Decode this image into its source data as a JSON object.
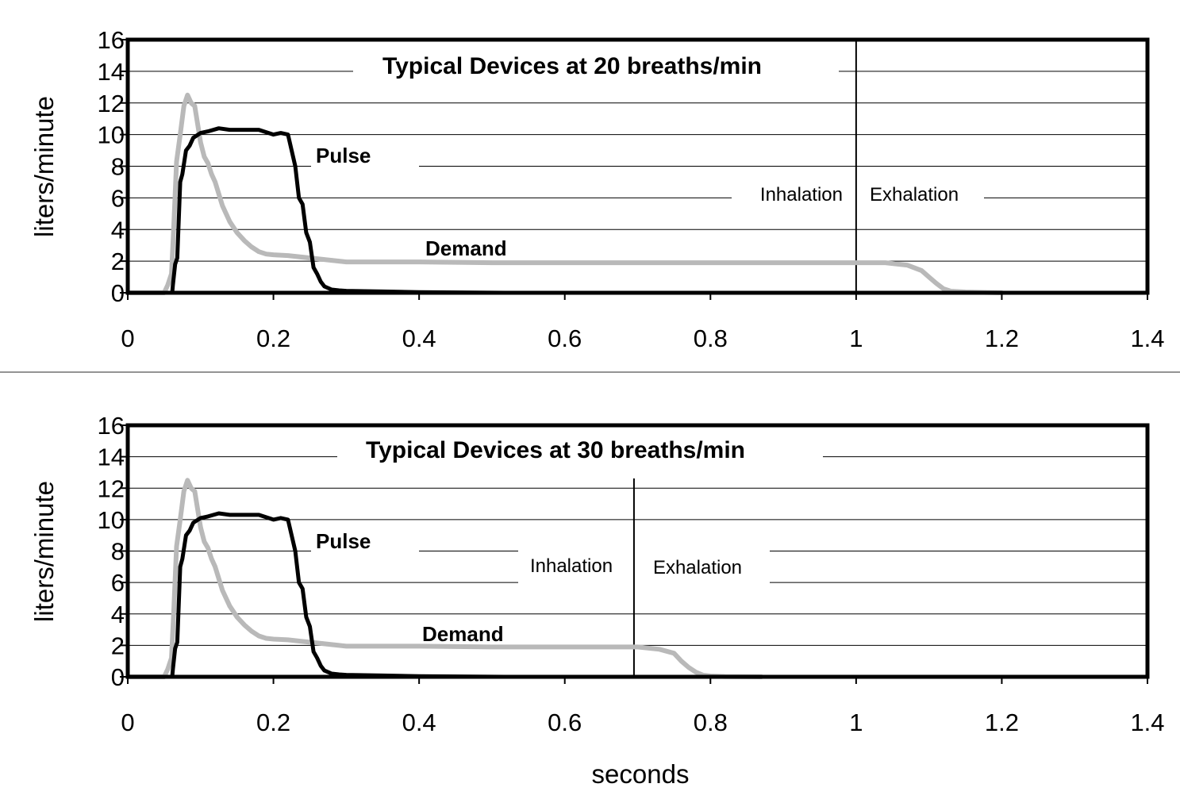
{
  "chart_data": [
    {
      "type": "line",
      "title": "Typical Devices at 20 breaths/min",
      "ylabel": "liters/minute",
      "xlabel": "",
      "xlim": [
        0,
        1.4
      ],
      "ylim": [
        0,
        16
      ],
      "xticks": [
        "0",
        "0.2",
        "0.4",
        "0.6",
        "0.8",
        "1",
        "1.2",
        "1.4"
      ],
      "yticks": [
        "0",
        "2",
        "4",
        "6",
        "8",
        "10",
        "12",
        "14",
        "16"
      ],
      "grid": true,
      "boundary_x": 1.0,
      "annotations": {
        "inhalation": "Inhalation",
        "exhalation": "Exhalation"
      },
      "series": [
        {
          "name": "Pulse",
          "color": "#000000",
          "x": [
            0,
            0.061,
            0.062,
            0.065,
            0.068,
            0.072,
            0.075,
            0.08,
            0.085,
            0.09,
            0.1,
            0.11,
            0.125,
            0.14,
            0.16,
            0.18,
            0.2,
            0.21,
            0.22,
            0.225,
            0.23,
            0.235,
            0.24,
            0.245,
            0.25,
            0.255,
            0.26,
            0.265,
            0.27,
            0.28,
            0.29,
            0.3,
            0.35,
            0.4,
            0.52
          ],
          "values": [
            0,
            0,
            0.5,
            1.8,
            2.2,
            7,
            7.5,
            9,
            9.3,
            9.8,
            10.1,
            10.2,
            10.4,
            10.3,
            10.3,
            10.3,
            10,
            10.1,
            10,
            9,
            8,
            6,
            5.6,
            3.8,
            3.2,
            1.6,
            1.2,
            0.7,
            0.4,
            0.2,
            0.15,
            0.12,
            0.08,
            0.04,
            0
          ]
        },
        {
          "name": "Demand",
          "color": "#b9b9b9",
          "x": [
            0,
            0.05,
            0.055,
            0.06,
            0.063,
            0.067,
            0.072,
            0.077,
            0.082,
            0.087,
            0.092,
            0.1,
            0.105,
            0.11,
            0.115,
            0.12,
            0.13,
            0.14,
            0.15,
            0.16,
            0.17,
            0.18,
            0.19,
            0.2,
            0.22,
            0.25,
            0.3,
            0.4,
            0.5,
            0.6,
            0.8,
            1.0,
            1.04,
            1.07,
            1.09,
            1.1,
            1.11,
            1.12,
            1.13,
            1.15,
            1.2
          ],
          "values": [
            0,
            0,
            0.5,
            1.2,
            4,
            8.3,
            10,
            11.8,
            12.5,
            12,
            11.8,
            9.5,
            8.6,
            8.2,
            7.5,
            7,
            5.5,
            4.5,
            3.8,
            3.3,
            2.9,
            2.6,
            2.45,
            2.4,
            2.35,
            2.2,
            1.95,
            1.95,
            1.9,
            1.9,
            1.9,
            1.9,
            1.9,
            1.75,
            1.4,
            1,
            0.6,
            0.25,
            0.1,
            0.05,
            0
          ]
        }
      ]
    },
    {
      "type": "line",
      "title": "Typical Devices at 30 breaths/min",
      "ylabel": "liters/minute",
      "xlabel": "seconds",
      "xlim": [
        0,
        1.4
      ],
      "ylim": [
        0,
        16
      ],
      "xticks": [
        "0",
        "0.2",
        "0.4",
        "0.6",
        "0.8",
        "1",
        "1.2",
        "1.4"
      ],
      "yticks": [
        "0",
        "2",
        "4",
        "6",
        "8",
        "10",
        "12",
        "14",
        "16"
      ],
      "grid": true,
      "boundary_x": 0.695,
      "annotations": {
        "inhalation": "Inhalation",
        "exhalation": "Exhalation"
      },
      "series": [
        {
          "name": "Pulse",
          "color": "#000000",
          "x": [
            0,
            0.061,
            0.062,
            0.065,
            0.068,
            0.072,
            0.075,
            0.08,
            0.085,
            0.09,
            0.1,
            0.11,
            0.125,
            0.14,
            0.16,
            0.18,
            0.2,
            0.21,
            0.22,
            0.225,
            0.23,
            0.235,
            0.24,
            0.245,
            0.25,
            0.255,
            0.26,
            0.265,
            0.27,
            0.28,
            0.29,
            0.3,
            0.35,
            0.4,
            0.52
          ],
          "values": [
            0,
            0,
            0.5,
            1.8,
            2.2,
            7,
            7.5,
            9,
            9.3,
            9.8,
            10.1,
            10.2,
            10.4,
            10.3,
            10.3,
            10.3,
            10,
            10.1,
            10,
            9,
            8,
            6,
            5.6,
            3.8,
            3.2,
            1.6,
            1.2,
            0.7,
            0.4,
            0.2,
            0.15,
            0.12,
            0.08,
            0.04,
            0
          ]
        },
        {
          "name": "Demand",
          "color": "#b9b9b9",
          "x": [
            0,
            0.05,
            0.055,
            0.06,
            0.063,
            0.067,
            0.072,
            0.077,
            0.082,
            0.087,
            0.092,
            0.1,
            0.105,
            0.11,
            0.115,
            0.12,
            0.13,
            0.14,
            0.15,
            0.16,
            0.17,
            0.18,
            0.19,
            0.2,
            0.22,
            0.25,
            0.3,
            0.4,
            0.5,
            0.6,
            0.7,
            0.73,
            0.75,
            0.76,
            0.77,
            0.78,
            0.79,
            0.8,
            0.82,
            0.87
          ],
          "values": [
            0,
            0,
            0.5,
            1.2,
            4,
            8.3,
            10,
            11.8,
            12.5,
            12,
            11.8,
            9.5,
            8.6,
            8.2,
            7.5,
            7,
            5.5,
            4.5,
            3.8,
            3.3,
            2.9,
            2.6,
            2.45,
            2.4,
            2.35,
            2.2,
            1.95,
            1.95,
            1.9,
            1.9,
            1.9,
            1.75,
            1.5,
            1,
            0.6,
            0.3,
            0.1,
            0.05,
            0.02,
            0
          ]
        }
      ]
    }
  ]
}
